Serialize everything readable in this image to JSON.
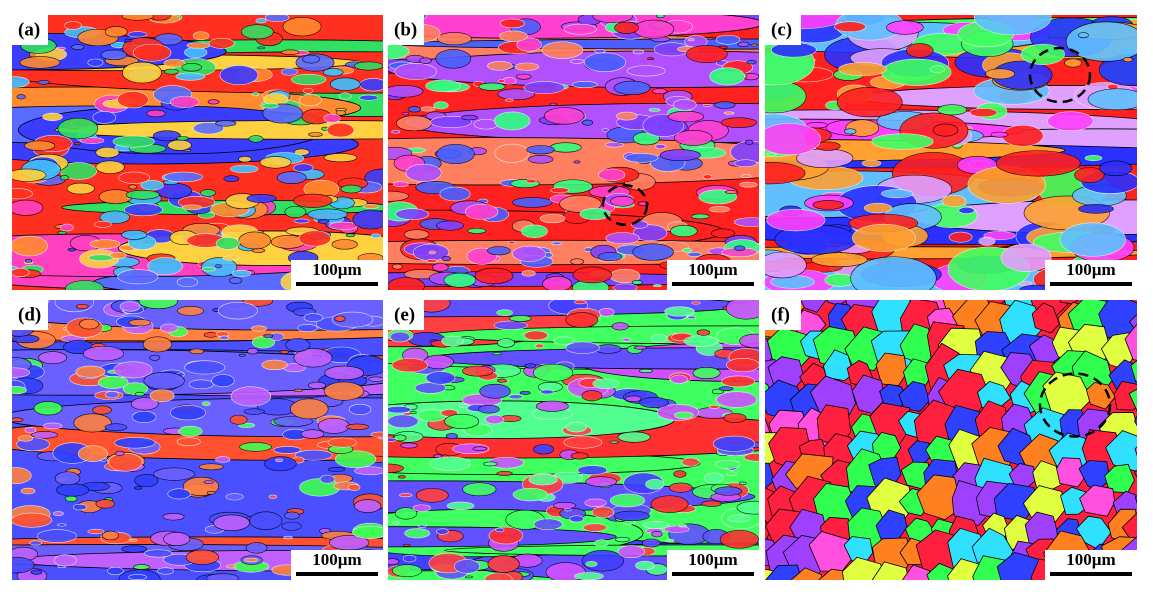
{
  "panels": [
    {
      "label": "(a)",
      "scale_bar": "100µm"
    },
    {
      "label": "(b)",
      "scale_bar": "100µm"
    },
    {
      "label": "(c)",
      "scale_bar": "100µm"
    },
    {
      "label": "(d)",
      "scale_bar": "100µm"
    },
    {
      "label": "(e)",
      "scale_bar": "100µm"
    },
    {
      "label": "(f)",
      "scale_bar": "100µm"
    }
  ]
}
